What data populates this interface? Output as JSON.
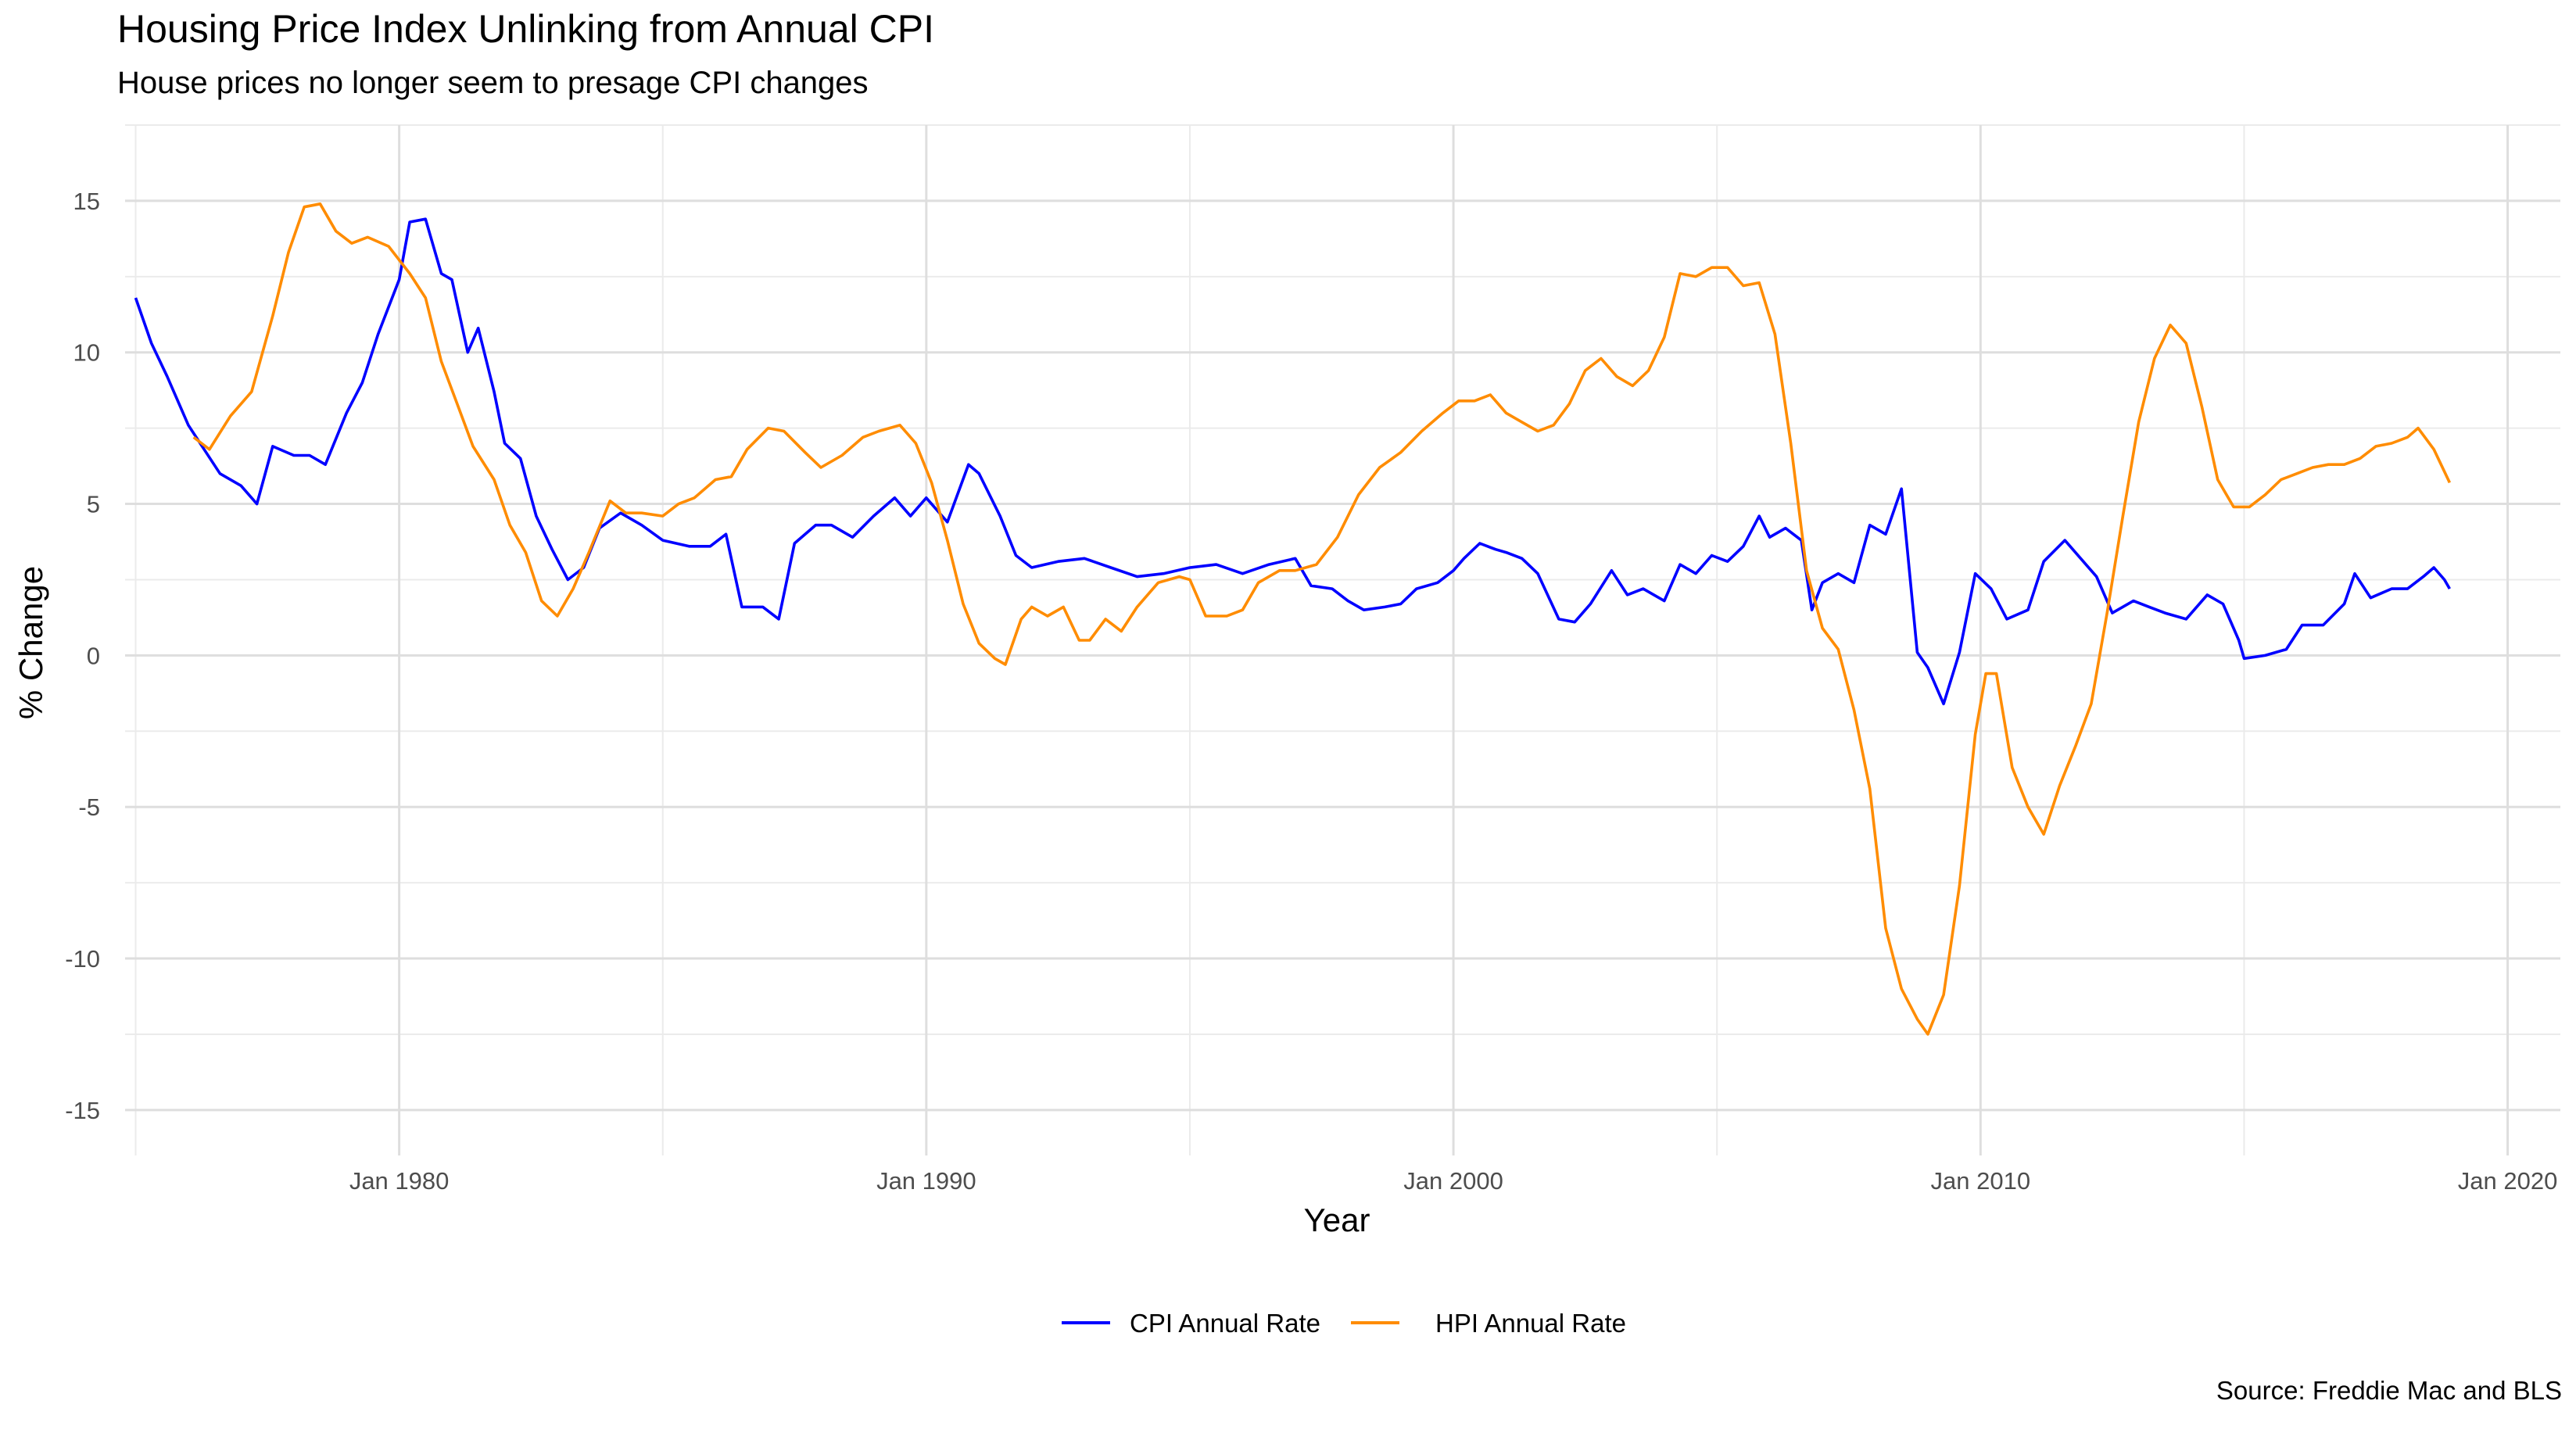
{
  "chart_data": {
    "type": "line",
    "title": "Housing Price Index Unlinking from Annual CPI",
    "subtitle": "House prices no longer seem to presage CPI changes",
    "xlabel": "Year",
    "ylabel": "% Change",
    "caption": "Source: Freddie Mac and BLS",
    "xlim": [
      1974.8,
      2021.0
    ],
    "ylim": [
      -16.5,
      17.5
    ],
    "x_ticks": [
      1980,
      1990,
      2000,
      2010,
      2020
    ],
    "x_tick_labels": [
      "Jan 1980",
      "Jan 1990",
      "Jan 2000",
      "Jan 2010",
      "Jan 2020"
    ],
    "y_ticks": [
      -15,
      -10,
      -5,
      0,
      5,
      10,
      15
    ],
    "y_tick_labels": [
      "-15",
      "-10",
      "-5",
      "0",
      "5",
      "10",
      "15"
    ],
    "grid": true,
    "legend_position": "bottom",
    "series": [
      {
        "name": "CPI Annual Rate",
        "color": "#0000ff",
        "points": [
          [
            1975.0,
            11.8
          ],
          [
            1975.3,
            10.3
          ],
          [
            1975.6,
            9.2
          ],
          [
            1976.0,
            7.6
          ],
          [
            1976.3,
            6.8
          ],
          [
            1976.6,
            6.0
          ],
          [
            1977.0,
            5.6
          ],
          [
            1977.3,
            5.0
          ],
          [
            1977.6,
            6.9
          ],
          [
            1978.0,
            6.6
          ],
          [
            1978.3,
            6.6
          ],
          [
            1978.6,
            6.3
          ],
          [
            1979.0,
            8.0
          ],
          [
            1979.3,
            9.0
          ],
          [
            1979.6,
            10.6
          ],
          [
            1980.0,
            12.4
          ],
          [
            1980.2,
            14.3
          ],
          [
            1980.5,
            14.4
          ],
          [
            1980.8,
            12.6
          ],
          [
            1981.0,
            12.4
          ],
          [
            1981.3,
            10.0
          ],
          [
            1981.5,
            10.8
          ],
          [
            1981.8,
            8.7
          ],
          [
            1982.0,
            7.0
          ],
          [
            1982.3,
            6.5
          ],
          [
            1982.6,
            4.6
          ],
          [
            1982.9,
            3.5
          ],
          [
            1983.2,
            2.5
          ],
          [
            1983.5,
            2.9
          ],
          [
            1983.8,
            4.2
          ],
          [
            1984.2,
            4.7
          ],
          [
            1984.6,
            4.3
          ],
          [
            1985.0,
            3.8
          ],
          [
            1985.5,
            3.6
          ],
          [
            1985.9,
            3.6
          ],
          [
            1986.2,
            4.0
          ],
          [
            1986.5,
            1.6
          ],
          [
            1986.9,
            1.6
          ],
          [
            1987.2,
            1.2
          ],
          [
            1987.5,
            3.7
          ],
          [
            1987.9,
            4.3
          ],
          [
            1988.2,
            4.3
          ],
          [
            1988.6,
            3.9
          ],
          [
            1989.0,
            4.6
          ],
          [
            1989.4,
            5.2
          ],
          [
            1989.7,
            4.6
          ],
          [
            1990.0,
            5.2
          ],
          [
            1990.4,
            4.4
          ],
          [
            1990.8,
            6.3
          ],
          [
            1991.0,
            6.0
          ],
          [
            1991.4,
            4.6
          ],
          [
            1991.7,
            3.3
          ],
          [
            1992.0,
            2.9
          ],
          [
            1992.5,
            3.1
          ],
          [
            1993.0,
            3.2
          ],
          [
            1993.5,
            2.9
          ],
          [
            1994.0,
            2.6
          ],
          [
            1994.5,
            2.7
          ],
          [
            1995.0,
            2.9
          ],
          [
            1995.5,
            3.0
          ],
          [
            1996.0,
            2.7
          ],
          [
            1996.5,
            3.0
          ],
          [
            1997.0,
            3.2
          ],
          [
            1997.3,
            2.3
          ],
          [
            1997.7,
            2.2
          ],
          [
            1998.0,
            1.8
          ],
          [
            1998.3,
            1.5
          ],
          [
            1998.7,
            1.6
          ],
          [
            1999.0,
            1.7
          ],
          [
            1999.3,
            2.2
          ],
          [
            1999.7,
            2.4
          ],
          [
            2000.0,
            2.8
          ],
          [
            2000.2,
            3.2
          ],
          [
            2000.5,
            3.7
          ],
          [
            2000.8,
            3.5
          ],
          [
            2001.0,
            3.4
          ],
          [
            2001.3,
            3.2
          ],
          [
            2001.6,
            2.7
          ],
          [
            2002.0,
            1.2
          ],
          [
            2002.3,
            1.1
          ],
          [
            2002.6,
            1.7
          ],
          [
            2003.0,
            2.8
          ],
          [
            2003.3,
            2.0
          ],
          [
            2003.6,
            2.2
          ],
          [
            2004.0,
            1.8
          ],
          [
            2004.3,
            3.0
          ],
          [
            2004.6,
            2.7
          ],
          [
            2004.9,
            3.3
          ],
          [
            2005.2,
            3.1
          ],
          [
            2005.5,
            3.6
          ],
          [
            2005.8,
            4.6
          ],
          [
            2006.0,
            3.9
          ],
          [
            2006.3,
            4.2
          ],
          [
            2006.6,
            3.8
          ],
          [
            2006.8,
            1.5
          ],
          [
            2007.0,
            2.4
          ],
          [
            2007.3,
            2.7
          ],
          [
            2007.6,
            2.4
          ],
          [
            2007.9,
            4.3
          ],
          [
            2008.2,
            4.0
          ],
          [
            2008.5,
            5.5
          ],
          [
            2008.8,
            0.1
          ],
          [
            2009.0,
            -0.4
          ],
          [
            2009.3,
            -1.6
          ],
          [
            2009.6,
            0.1
          ],
          [
            2009.9,
            2.7
          ],
          [
            2010.2,
            2.2
          ],
          [
            2010.5,
            1.2
          ],
          [
            2010.9,
            1.5
          ],
          [
            2011.2,
            3.1
          ],
          [
            2011.6,
            3.8
          ],
          [
            2011.9,
            3.2
          ],
          [
            2012.2,
            2.6
          ],
          [
            2012.5,
            1.4
          ],
          [
            2012.9,
            1.8
          ],
          [
            2013.2,
            1.6
          ],
          [
            2013.5,
            1.4
          ],
          [
            2013.9,
            1.2
          ],
          [
            2014.3,
            2.0
          ],
          [
            2014.6,
            1.7
          ],
          [
            2014.9,
            0.5
          ],
          [
            2015.0,
            -0.1
          ],
          [
            2015.4,
            0.0
          ],
          [
            2015.8,
            0.2
          ],
          [
            2016.1,
            1.0
          ],
          [
            2016.5,
            1.0
          ],
          [
            2016.9,
            1.7
          ],
          [
            2017.1,
            2.7
          ],
          [
            2017.4,
            1.9
          ],
          [
            2017.8,
            2.2
          ],
          [
            2018.1,
            2.2
          ],
          [
            2018.4,
            2.6
          ],
          [
            2018.6,
            2.9
          ],
          [
            2018.8,
            2.5
          ],
          [
            2018.9,
            2.2
          ]
        ]
      },
      {
        "name": "HPI Annual Rate",
        "color": "#ff8c00",
        "points": [
          [
            1976.1,
            7.2
          ],
          [
            1976.4,
            6.8
          ],
          [
            1976.8,
            7.9
          ],
          [
            1977.2,
            8.7
          ],
          [
            1977.6,
            11.2
          ],
          [
            1977.9,
            13.3
          ],
          [
            1978.2,
            14.8
          ],
          [
            1978.5,
            14.9
          ],
          [
            1978.8,
            14.0
          ],
          [
            1979.1,
            13.6
          ],
          [
            1979.4,
            13.8
          ],
          [
            1979.8,
            13.5
          ],
          [
            1980.2,
            12.6
          ],
          [
            1980.5,
            11.8
          ],
          [
            1980.8,
            9.7
          ],
          [
            1981.1,
            8.3
          ],
          [
            1981.4,
            6.9
          ],
          [
            1981.8,
            5.8
          ],
          [
            1982.1,
            4.3
          ],
          [
            1982.4,
            3.4
          ],
          [
            1982.7,
            1.8
          ],
          [
            1983.0,
            1.3
          ],
          [
            1983.3,
            2.2
          ],
          [
            1983.6,
            3.4
          ],
          [
            1984.0,
            5.1
          ],
          [
            1984.3,
            4.7
          ],
          [
            1984.6,
            4.7
          ],
          [
            1985.0,
            4.6
          ],
          [
            1985.3,
            5.0
          ],
          [
            1985.6,
            5.2
          ],
          [
            1986.0,
            5.8
          ],
          [
            1986.3,
            5.9
          ],
          [
            1986.6,
            6.8
          ],
          [
            1987.0,
            7.5
          ],
          [
            1987.3,
            7.4
          ],
          [
            1987.7,
            6.7
          ],
          [
            1988.0,
            6.2
          ],
          [
            1988.4,
            6.6
          ],
          [
            1988.8,
            7.2
          ],
          [
            1989.1,
            7.4
          ],
          [
            1989.5,
            7.6
          ],
          [
            1989.8,
            7.0
          ],
          [
            1990.1,
            5.7
          ],
          [
            1990.4,
            3.8
          ],
          [
            1990.7,
            1.7
          ],
          [
            1991.0,
            0.4
          ],
          [
            1991.3,
            -0.1
          ],
          [
            1991.5,
            -0.3
          ],
          [
            1991.8,
            1.2
          ],
          [
            1992.0,
            1.6
          ],
          [
            1992.3,
            1.3
          ],
          [
            1992.6,
            1.6
          ],
          [
            1992.9,
            0.5
          ],
          [
            1993.1,
            0.5
          ],
          [
            1993.4,
            1.2
          ],
          [
            1993.7,
            0.8
          ],
          [
            1994.0,
            1.6
          ],
          [
            1994.4,
            2.4
          ],
          [
            1994.8,
            2.6
          ],
          [
            1995.0,
            2.5
          ],
          [
            1995.3,
            1.3
          ],
          [
            1995.7,
            1.3
          ],
          [
            1996.0,
            1.5
          ],
          [
            1996.3,
            2.4
          ],
          [
            1996.7,
            2.8
          ],
          [
            1997.0,
            2.8
          ],
          [
            1997.4,
            3.0
          ],
          [
            1997.8,
            3.9
          ],
          [
            1998.2,
            5.3
          ],
          [
            1998.6,
            6.2
          ],
          [
            1999.0,
            6.7
          ],
          [
            1999.4,
            7.4
          ],
          [
            1999.8,
            8.0
          ],
          [
            2000.1,
            8.4
          ],
          [
            2000.4,
            8.4
          ],
          [
            2000.7,
            8.6
          ],
          [
            2001.0,
            8.0
          ],
          [
            2001.3,
            7.7
          ],
          [
            2001.6,
            7.4
          ],
          [
            2001.9,
            7.6
          ],
          [
            2002.2,
            8.3
          ],
          [
            2002.5,
            9.4
          ],
          [
            2002.8,
            9.8
          ],
          [
            2003.1,
            9.2
          ],
          [
            2003.4,
            8.9
          ],
          [
            2003.7,
            9.4
          ],
          [
            2004.0,
            10.5
          ],
          [
            2004.3,
            12.6
          ],
          [
            2004.6,
            12.5
          ],
          [
            2004.9,
            12.8
          ],
          [
            2005.2,
            12.8
          ],
          [
            2005.5,
            12.2
          ],
          [
            2005.8,
            12.3
          ],
          [
            2006.1,
            10.6
          ],
          [
            2006.4,
            7.0
          ],
          [
            2006.7,
            2.8
          ],
          [
            2007.0,
            0.9
          ],
          [
            2007.3,
            0.2
          ],
          [
            2007.6,
            -1.8
          ],
          [
            2007.9,
            -4.4
          ],
          [
            2008.2,
            -9.0
          ],
          [
            2008.5,
            -11.0
          ],
          [
            2008.8,
            -12.0
          ],
          [
            2009.0,
            -12.5
          ],
          [
            2009.3,
            -11.2
          ],
          [
            2009.6,
            -7.6
          ],
          [
            2009.9,
            -2.6
          ],
          [
            2010.1,
            -0.6
          ],
          [
            2010.3,
            -0.6
          ],
          [
            2010.6,
            -3.7
          ],
          [
            2010.9,
            -5.0
          ],
          [
            2011.2,
            -5.9
          ],
          [
            2011.5,
            -4.3
          ],
          [
            2011.8,
            -3.0
          ],
          [
            2012.1,
            -1.6
          ],
          [
            2012.4,
            1.4
          ],
          [
            2012.7,
            4.6
          ],
          [
            2013.0,
            7.7
          ],
          [
            2013.3,
            9.8
          ],
          [
            2013.6,
            10.9
          ],
          [
            2013.9,
            10.3
          ],
          [
            2014.2,
            8.2
          ],
          [
            2014.5,
            5.8
          ],
          [
            2014.8,
            4.9
          ],
          [
            2015.1,
            4.9
          ],
          [
            2015.4,
            5.3
          ],
          [
            2015.7,
            5.8
          ],
          [
            2016.0,
            6.0
          ],
          [
            2016.3,
            6.2
          ],
          [
            2016.6,
            6.3
          ],
          [
            2016.9,
            6.3
          ],
          [
            2017.2,
            6.5
          ],
          [
            2017.5,
            6.9
          ],
          [
            2017.8,
            7.0
          ],
          [
            2018.1,
            7.2
          ],
          [
            2018.3,
            7.5
          ],
          [
            2018.6,
            6.8
          ],
          [
            2018.9,
            5.7
          ]
        ]
      }
    ]
  }
}
